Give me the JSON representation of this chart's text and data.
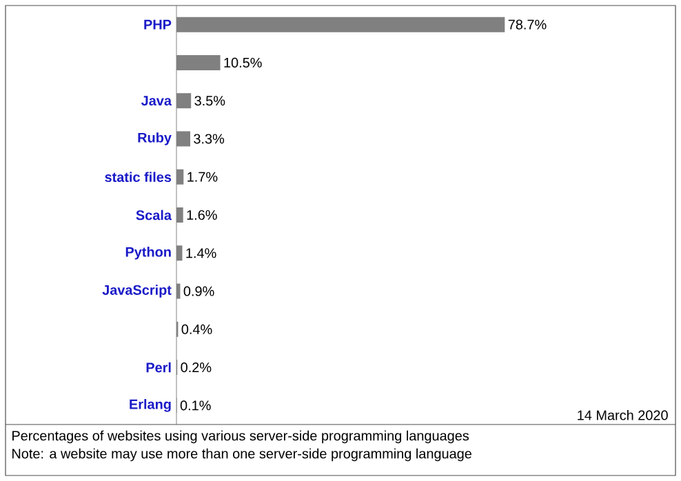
{
  "chart_data": {
    "type": "bar",
    "orientation": "horizontal",
    "categories": [
      "PHP",
      null,
      "Java",
      "Ruby",
      "static files",
      "Scala",
      "Python",
      "JavaScript",
      null,
      "Perl",
      "Erlang"
    ],
    "values": [
      78.7,
      10.5,
      3.5,
      3.3,
      1.7,
      1.6,
      1.4,
      0.9,
      0.4,
      0.2,
      0.1
    ],
    "value_labels": [
      "78.7%",
      "10.5%",
      "3.5%",
      "3.3%",
      "1.7%",
      "1.6%",
      "1.4%",
      "0.9%",
      "0.4%",
      "0.2%",
      "0.1%"
    ],
    "color": "#808080",
    "annotations": [
      "14 March 2020",
      "Percentages of websites using various server-side programming languages",
      "Note: a website may use more than one server-side programming language"
    ]
  }
}
